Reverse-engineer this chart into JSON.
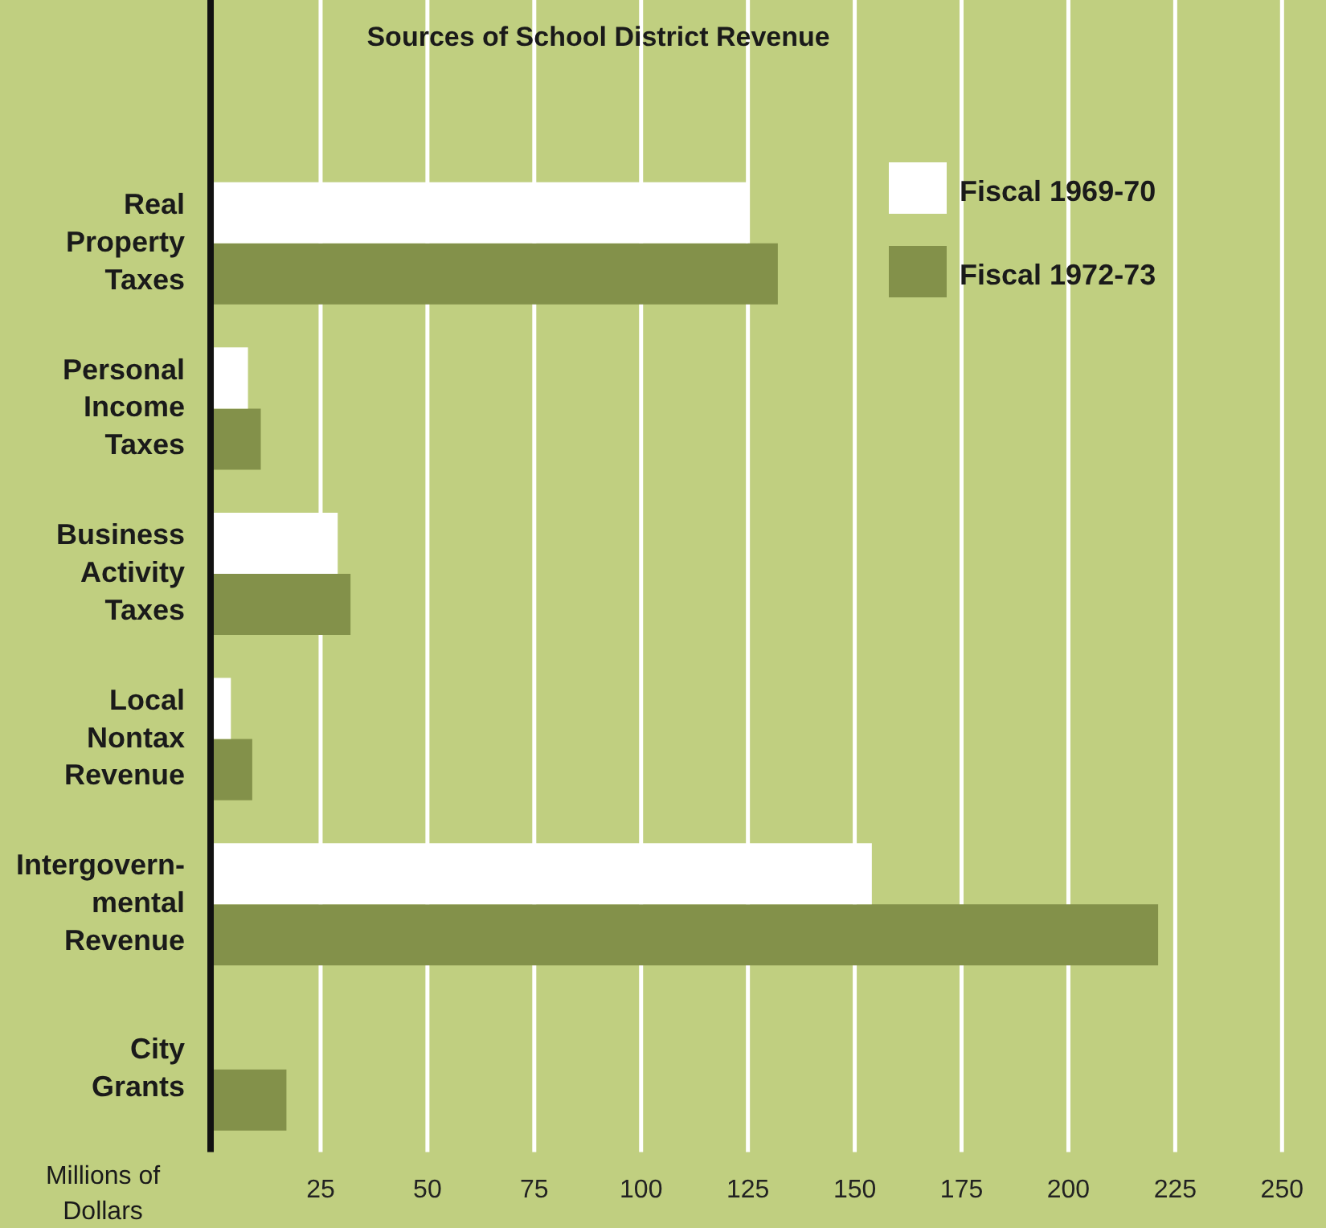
{
  "chart_data": {
    "type": "bar",
    "orientation": "horizontal",
    "title": "Sources of School District Revenue",
    "xlabel": "Millions of Dollars",
    "categories": [
      "Real Property Taxes",
      "Personal Income Taxes",
      "Business Activity Taxes",
      "Local Nontax Revenue",
      "Intergovern- mental Revenue",
      "City Grants"
    ],
    "series": [
      {
        "name": "Fiscal 1969-70",
        "color": "#ffffff",
        "values": [
          125,
          8,
          29,
          4,
          154,
          null
        ]
      },
      {
        "name": "Fiscal 1972-73",
        "color": "#83914a",
        "values": [
          132,
          11,
          32,
          9,
          221,
          17
        ]
      }
    ],
    "xlim": [
      0,
      250
    ],
    "xticks": [
      25,
      50,
      75,
      100,
      125,
      150,
      175,
      200,
      225,
      250
    ],
    "grid": "x",
    "legend": "top right"
  }
}
